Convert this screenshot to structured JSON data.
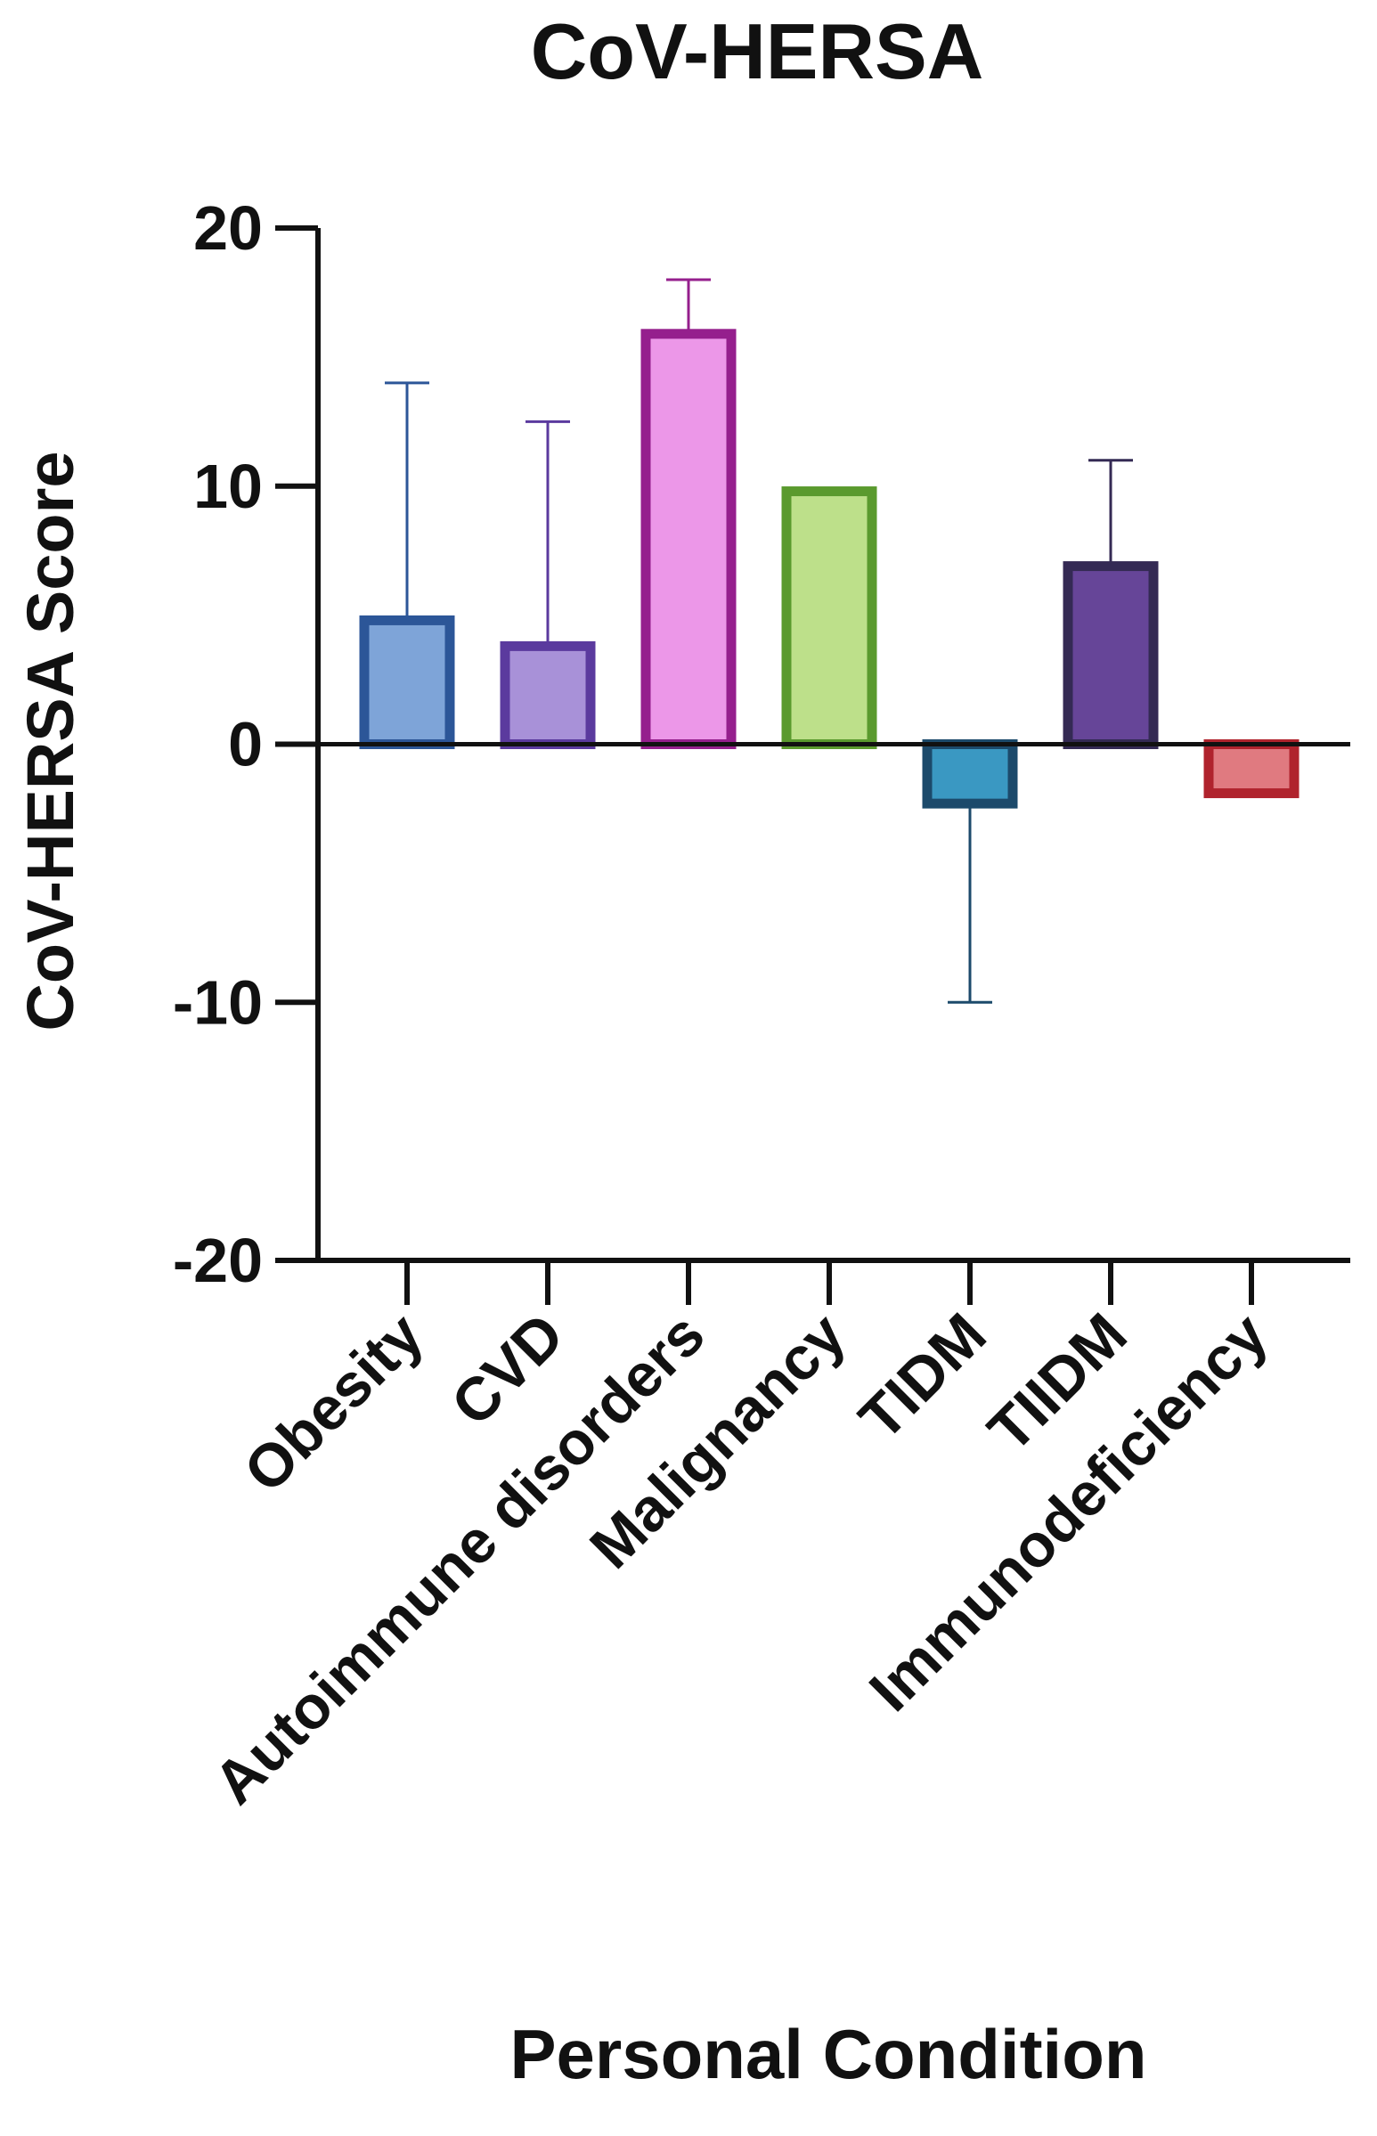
{
  "chart_data": {
    "type": "bar",
    "title": "CoV-HERSA",
    "xlabel": "Personal Condition",
    "ylabel": "CoV-HERSA Score",
    "ylim": [
      -20,
      20
    ],
    "yticks": [
      20,
      10,
      0,
      -10,
      -20
    ],
    "ytick_labels": [
      "20",
      "10",
      "0",
      "-10",
      "-20"
    ],
    "grid": false,
    "legend": "none",
    "categories": [
      "Obesity",
      "CVD",
      "Autoimmune disorders",
      "Malignancy",
      "TIDM",
      "TIIDM",
      "Immunodeficiency"
    ],
    "values": [
      4.8,
      3.8,
      15.9,
      9.8,
      -2.3,
      6.9,
      -1.9
    ],
    "error_values": [
      14.0,
      12.5,
      18.0,
      null,
      -10.0,
      11.0,
      null
    ],
    "fill_colors": [
      "#7ea4d8",
      "#a891d8",
      "#ec97e8",
      "#bde08a",
      "#3a98c2",
      "#664598",
      "#e07a80"
    ],
    "edge_colors": [
      "#2c5698",
      "#5b3a9e",
      "#951f8d",
      "#5a9a2e",
      "#1c4a6b",
      "#342a54",
      "#b0232d"
    ]
  }
}
